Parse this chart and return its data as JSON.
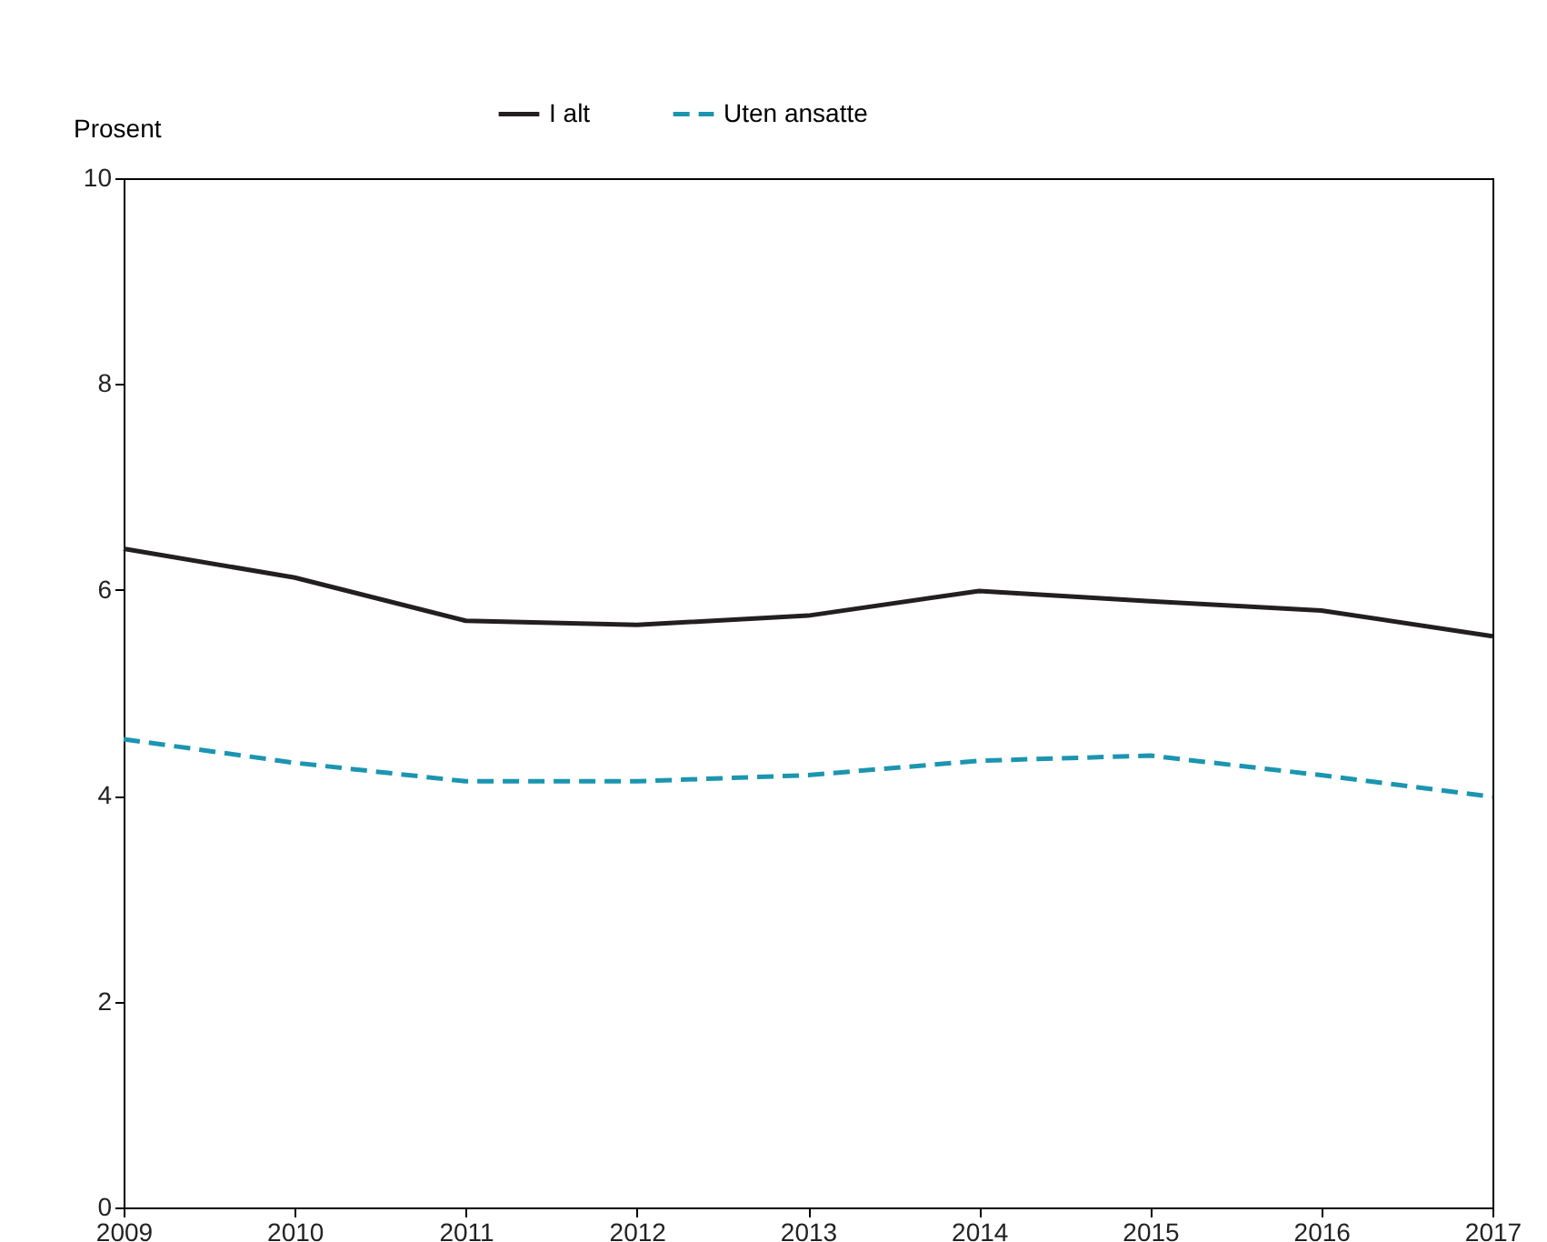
{
  "chart_data": {
    "type": "line",
    "ylabel": "Prosent",
    "x": [
      2009,
      2010,
      2011,
      2012,
      2013,
      2014,
      2015,
      2016,
      2017
    ],
    "series": [
      {
        "name": "I alt",
        "color": "#231f20",
        "line_style": "solid",
        "values": [
          6.4,
          6.12,
          5.7,
          5.66,
          5.75,
          5.99,
          5.89,
          5.8,
          5.55
        ]
      },
      {
        "name": "Uten ansatte",
        "color": "#1b95b0",
        "line_style": "dashed",
        "values": [
          4.55,
          4.32,
          4.14,
          4.14,
          4.2,
          4.34,
          4.39,
          4.2,
          3.99
        ]
      }
    ],
    "xlim": [
      2009,
      2017
    ],
    "xticks": [
      2009,
      2010,
      2011,
      2012,
      2013,
      2014,
      2015,
      2016,
      2017
    ],
    "ylim": [
      0,
      10
    ],
    "yticks": [
      0,
      2,
      4,
      6,
      8,
      10
    ],
    "grid": false,
    "legend": "top",
    "marker": "none"
  }
}
